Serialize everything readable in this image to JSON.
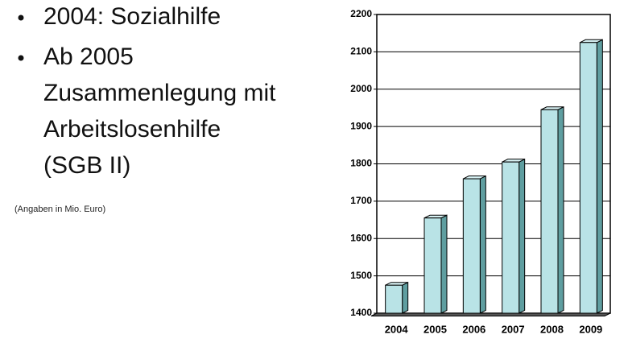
{
  "bullets": [
    [
      "2004: Sozialhilfe"
    ],
    [
      "Ab 2005",
      "Zusammenlegung mit",
      "Arbeitslosenhilfe",
      "(SGB II)"
    ]
  ],
  "note": "(Angaben in Mio. Euro)",
  "chart_data": {
    "type": "bar",
    "categories": [
      "2004",
      "2005",
      "2006",
      "2007",
      "2008",
      "2009"
    ],
    "values": [
      1475,
      1655,
      1760,
      1805,
      1945,
      2125
    ],
    "color": "#b9e3e6",
    "ylim": [
      1400,
      2200
    ],
    "yticks": [
      1400,
      1500,
      1600,
      1700,
      1800,
      1900,
      2000,
      2100,
      2200
    ],
    "grid": true
  }
}
